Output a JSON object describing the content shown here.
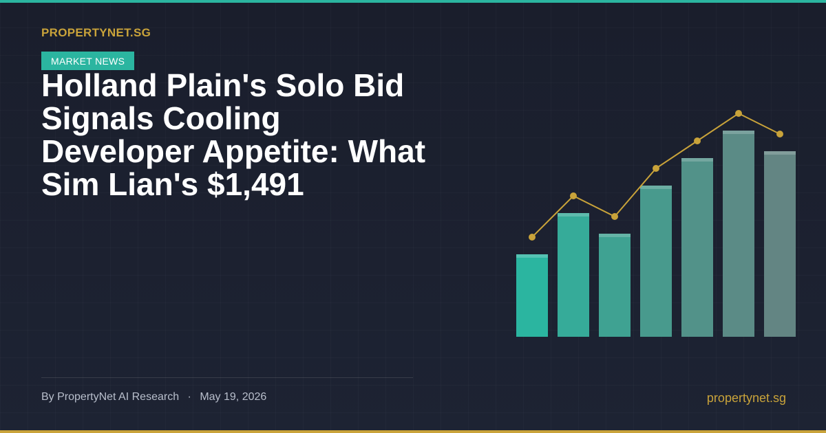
{
  "brand": "PROPERTYNET.SG",
  "tag": "MARKET NEWS",
  "title": "Holland Plain's Solo Bid Signals Cooling Developer Appetite: What Sim Lian's $1,491",
  "byline": {
    "author": "By PropertyNet AI Research",
    "separator": "·",
    "date": "May 19, 2026"
  },
  "footer": {
    "site": "propertynet.sg"
  }
}
